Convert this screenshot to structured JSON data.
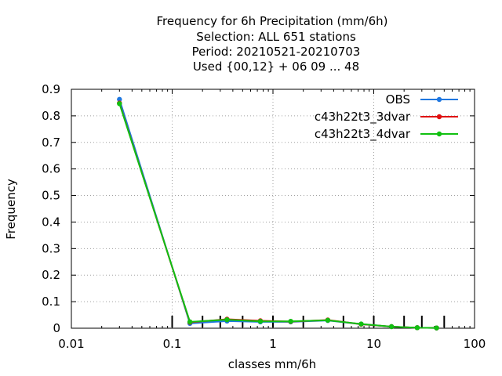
{
  "chart_data": {
    "type": "line",
    "title": [
      "Frequency  for 6h Precipitation (mm/6h)",
      "Selection: ALL    651 stations",
      "Period: 20210521-20210703",
      "Used {00,12} + 06 09 ... 48"
    ],
    "xlabel": "classes mm/6h",
    "ylabel": "Frequency",
    "x_scale": "log",
    "xlim": [
      0.01,
      100
    ],
    "ylim": [
      0,
      0.9
    ],
    "x_ticks": [
      0.01,
      0.1,
      1,
      10,
      100
    ],
    "x_tick_labels": [
      "0.01",
      "0.1",
      "1",
      "10",
      "100"
    ],
    "y_ticks": [
      0,
      0.1,
      0.2,
      0.3,
      0.4,
      0.5,
      0.6,
      0.7,
      0.8,
      0.9
    ],
    "y_tick_labels": [
      "0",
      "0.1",
      "0.2",
      "0.3",
      "0.4",
      "0.5",
      "0.6",
      "0.7",
      "0.8",
      "0.9"
    ],
    "grid": true,
    "legend_position": "top-right",
    "class_boundaries": [
      0.1,
      0.2,
      0.3,
      0.5,
      1,
      2,
      5,
      10,
      20,
      30,
      50
    ],
    "x": [
      0.03,
      0.15,
      0.35,
      0.75,
      1.5,
      3.5,
      7.5,
      15,
      27,
      42
    ],
    "series": [
      {
        "name": "OBS",
        "color": "#1f77e0",
        "values": [
          0.862,
          0.018,
          0.027,
          0.024,
          0.024,
          0.029,
          0.015,
          0.006,
          0.002,
          0.001
        ]
      },
      {
        "name": "c43h22t3_3dvar",
        "color": "#e01010",
        "values": [
          0.848,
          0.022,
          0.034,
          0.028,
          0.025,
          0.031,
          0.015,
          0.006,
          0.002,
          0.001
        ]
      },
      {
        "name": "c43h22t3_4dvar",
        "color": "#10c010",
        "values": [
          0.846,
          0.024,
          0.032,
          0.026,
          0.026,
          0.03,
          0.016,
          0.006,
          0.002,
          0.001
        ]
      }
    ]
  }
}
